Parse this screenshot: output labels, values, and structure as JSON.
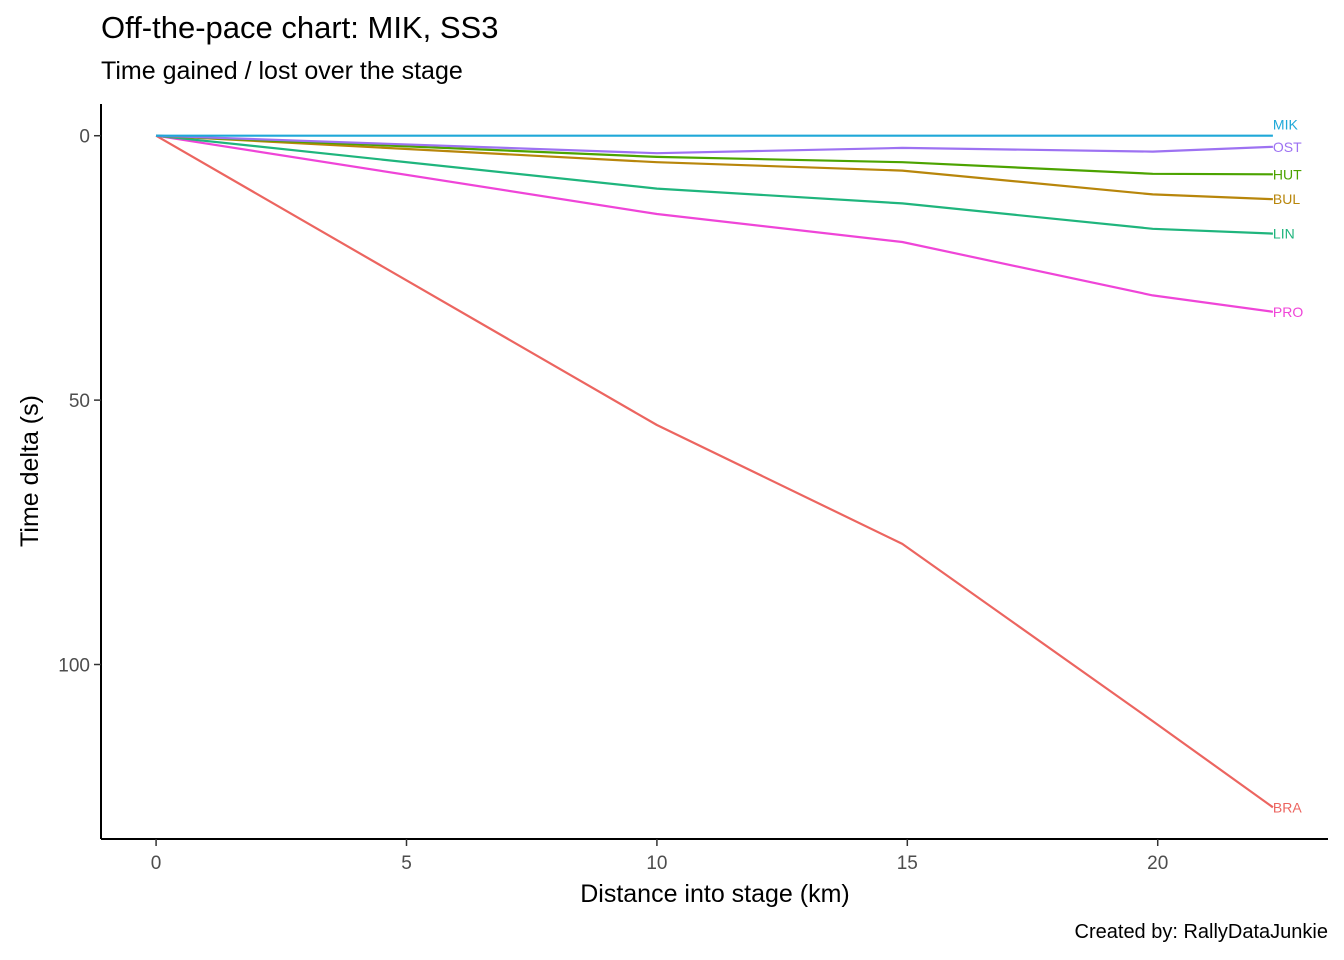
{
  "chart_data": {
    "type": "line",
    "title": "Off-the-pace chart: MIK, SS3",
    "subtitle": "Time gained / lost over the stage",
    "caption": "Created by: RallyDataJunkie",
    "xlabel": "Distance into stage (km)",
    "ylabel": "Time delta (s)",
    "xlim": [
      -1.1,
      23.4
    ],
    "ylim": [
      -6,
      133
    ],
    "y_reversed": true,
    "grid": false,
    "x_ticks": [
      0,
      5,
      10,
      15,
      20
    ],
    "y_ticks": [
      0,
      50,
      100
    ],
    "x_tick_labels": [
      "0",
      "5",
      "10",
      "15",
      "20"
    ],
    "y_tick_labels": [
      "0",
      "50",
      "100"
    ],
    "series": [
      {
        "name": "MIK",
        "color": "#1FA8D8",
        "x": [
          0,
          10.0,
          14.9,
          19.9,
          22.3
        ],
        "y": [
          0,
          0,
          0,
          0,
          0
        ]
      },
      {
        "name": "OST",
        "color": "#9D72F2",
        "x": [
          0,
          10.0,
          14.9,
          19.9,
          22.3
        ],
        "y": [
          0,
          3.3,
          2.3,
          3.0,
          2.1
        ]
      },
      {
        "name": "HUT",
        "color": "#4CA300",
        "x": [
          0,
          10.0,
          14.9,
          19.9,
          22.3
        ],
        "y": [
          0,
          4.0,
          5.0,
          7.2,
          7.3
        ]
      },
      {
        "name": "BUL",
        "color": "#B8860B",
        "x": [
          0,
          10.0,
          14.9,
          19.9,
          22.3
        ],
        "y": [
          0,
          5.0,
          6.6,
          11.1,
          12.0
        ]
      },
      {
        "name": "LIN",
        "color": "#1FB57D",
        "x": [
          0,
          10.0,
          14.9,
          19.9,
          22.3
        ],
        "y": [
          0,
          10.0,
          12.8,
          17.6,
          18.5
        ]
      },
      {
        "name": "PRO",
        "color": "#EF45D8",
        "x": [
          0,
          10.0,
          14.9,
          19.9,
          22.3
        ],
        "y": [
          0,
          14.8,
          20.1,
          30.2,
          33.3
        ]
      },
      {
        "name": "BRA",
        "color": "#EC6560",
        "x": [
          0,
          10.0,
          14.9,
          19.9,
          22.3
        ],
        "y": [
          0,
          54.7,
          77.2,
          110.7,
          127.0
        ]
      }
    ]
  }
}
